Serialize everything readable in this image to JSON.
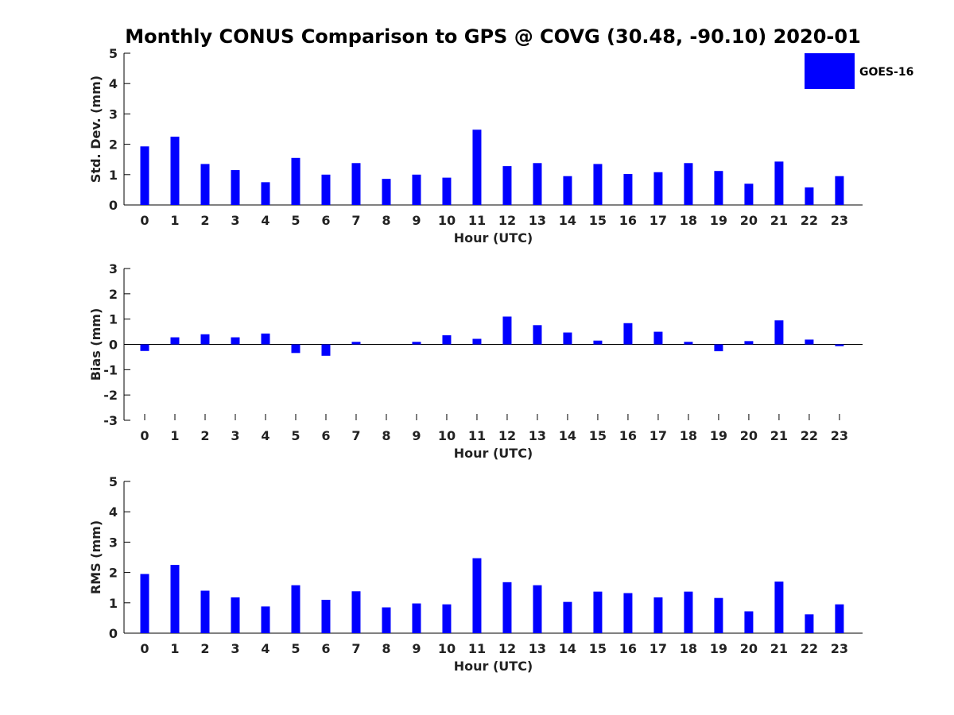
{
  "title": "Monthly CONUS Comparison to GPS @ COVG (30.48, -90.10) 2020-01",
  "colors": {
    "bar": "#0000ff",
    "axis": "#000000",
    "text": "#222222"
  },
  "legend": {
    "label": "GOES-16",
    "placement": "top-right"
  },
  "chart_data": [
    {
      "type": "bar",
      "xlabel": "Hour (UTC)",
      "ylabel": "Std. Dev. (mm)",
      "ylim": [
        0,
        5
      ],
      "yticks": [
        0,
        1,
        2,
        3,
        4,
        5
      ],
      "categories": [
        "0",
        "1",
        "2",
        "3",
        "4",
        "5",
        "6",
        "7",
        "8",
        "9",
        "10",
        "11",
        "12",
        "13",
        "14",
        "15",
        "16",
        "17",
        "18",
        "19",
        "20",
        "21",
        "22",
        "23"
      ],
      "series": [
        {
          "name": "GOES-16",
          "values": [
            1.93,
            2.25,
            1.35,
            1.15,
            0.75,
            1.55,
            1.0,
            1.38,
            0.86,
            1.0,
            0.9,
            2.48,
            1.28,
            1.38,
            0.95,
            1.35,
            1.02,
            1.08,
            1.38,
            1.12,
            0.7,
            1.43,
            0.58,
            0.95
          ]
        }
      ],
      "grid": false
    },
    {
      "type": "bar",
      "xlabel": "Hour (UTC)",
      "ylabel": "Bias (mm)",
      "ylim": [
        -3,
        3
      ],
      "yticks": [
        -3,
        -2,
        -1,
        0,
        1,
        2,
        3
      ],
      "categories": [
        "0",
        "1",
        "2",
        "3",
        "4",
        "5",
        "6",
        "7",
        "8",
        "9",
        "10",
        "11",
        "12",
        "13",
        "14",
        "15",
        "16",
        "17",
        "18",
        "19",
        "20",
        "21",
        "22",
        "23"
      ],
      "series": [
        {
          "name": "GOES-16",
          "values": [
            -0.26,
            0.28,
            0.4,
            0.28,
            0.43,
            -0.34,
            -0.45,
            0.1,
            0.0,
            0.1,
            0.36,
            0.22,
            1.1,
            0.76,
            0.47,
            0.15,
            0.84,
            0.5,
            0.1,
            -0.27,
            0.13,
            0.95,
            0.19,
            -0.07
          ]
        }
      ],
      "grid": false
    },
    {
      "type": "bar",
      "xlabel": "Hour (UTC)",
      "ylabel": "RMS (mm)",
      "ylim": [
        0,
        5
      ],
      "yticks": [
        0,
        1,
        2,
        3,
        4,
        5
      ],
      "categories": [
        "0",
        "1",
        "2",
        "3",
        "4",
        "5",
        "6",
        "7",
        "8",
        "9",
        "10",
        "11",
        "12",
        "13",
        "14",
        "15",
        "16",
        "17",
        "18",
        "19",
        "20",
        "21",
        "22",
        "23"
      ],
      "series": [
        {
          "name": "GOES-16",
          "values": [
            1.95,
            2.25,
            1.4,
            1.18,
            0.88,
            1.58,
            1.1,
            1.38,
            0.85,
            0.98,
            0.95,
            2.47,
            1.68,
            1.58,
            1.03,
            1.37,
            1.32,
            1.18,
            1.37,
            1.16,
            0.72,
            1.7,
            0.62,
            0.95
          ]
        }
      ],
      "grid": false
    }
  ]
}
